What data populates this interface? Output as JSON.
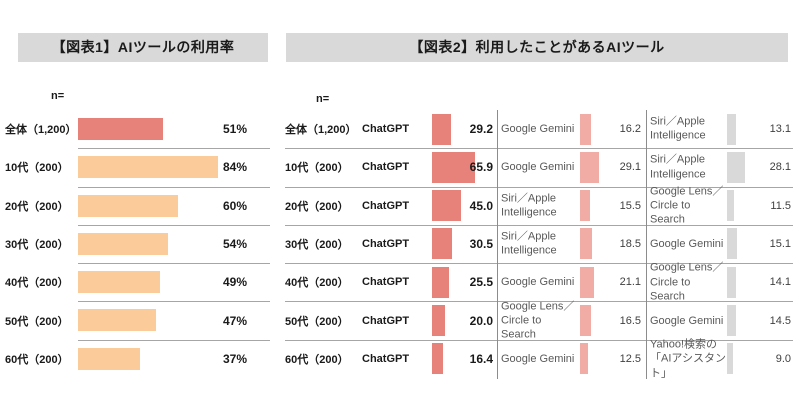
{
  "colors": {
    "header_bg": "#d9d9d9",
    "separator": "#a6a6a6",
    "column_divider": "#8c8c8c",
    "bar_salmon": "#e6827a",
    "bar_orange": "#fbcc99",
    "bar_pink": "#f2aca6",
    "bar_gray": "#d9d9d9",
    "text": "#1a1a1a",
    "muted_text": "#595959"
  },
  "chart_data": [
    {
      "type": "bar",
      "orientation": "horizontal",
      "title": "【図表1】AIツールの利用率",
      "n_label": "n=",
      "unit": "%",
      "xlim": [
        0,
        100
      ],
      "grid": false,
      "categories": [
        "全体（1,200）",
        "10代（200）",
        "20代（200）",
        "30代（200）",
        "40代（200）",
        "50代（200）",
        "60代（200）"
      ],
      "values": [
        51,
        84,
        60,
        54,
        49,
        47,
        37
      ],
      "value_labels": [
        "51%",
        "84%",
        "60%",
        "54%",
        "49%",
        "47%",
        "37%"
      ],
      "bar_colors": [
        "#e6827a",
        "#fbcc99",
        "#fbcc99",
        "#fbcc99",
        "#fbcc99",
        "#fbcc99",
        "#fbcc99"
      ]
    },
    {
      "type": "bar",
      "orientation": "horizontal",
      "title": "【図表2】利用したことがあるAIツール",
      "n_label": "n=",
      "unit": "%",
      "grid": false,
      "rank_colors": [
        "#e6827a",
        "#f2aca6",
        "#d9d9d9"
      ],
      "categories": [
        "全体（1,200）",
        "10代（200）",
        "20代（200）",
        "30代（200）",
        "40代（200）",
        "50代（200）",
        "60代（200）"
      ],
      "rows": [
        {
          "category": "全体（1,200）",
          "tools": [
            {
              "name": "ChatGPT",
              "value": "29.2"
            },
            {
              "name": "Google Gemini",
              "value": "16.2"
            },
            {
              "name": "Siri／Apple Intelligence",
              "value": "13.1"
            }
          ]
        },
        {
          "category": "10代（200）",
          "tools": [
            {
              "name": "ChatGPT",
              "value": "65.9"
            },
            {
              "name": "Google Gemini",
              "value": "29.1"
            },
            {
              "name": "Siri／Apple Intelligence",
              "value": "28.1"
            }
          ]
        },
        {
          "category": "20代（200）",
          "tools": [
            {
              "name": "ChatGPT",
              "value": "45.0"
            },
            {
              "name": "Siri／Apple Intelligence",
              "value": "15.5"
            },
            {
              "name": "Google Lens／Circle to Search",
              "value": "11.5"
            }
          ]
        },
        {
          "category": "30代（200）",
          "tools": [
            {
              "name": "ChatGPT",
              "value": "30.5"
            },
            {
              "name": "Siri／Apple Intelligence",
              "value": "18.5"
            },
            {
              "name": "Google Gemini",
              "value": "15.1"
            }
          ]
        },
        {
          "category": "40代（200）",
          "tools": [
            {
              "name": "ChatGPT",
              "value": "25.5"
            },
            {
              "name": "Google Gemini",
              "value": "21.1"
            },
            {
              "name": "Google Lens／Circle to Search",
              "value": "14.1"
            }
          ]
        },
        {
          "category": "50代（200）",
          "tools": [
            {
              "name": "ChatGPT",
              "value": "20.0"
            },
            {
              "name": "Google Lens／Circle to Search",
              "value": "16.5"
            },
            {
              "name": "Google Gemini",
              "value": "14.5"
            }
          ]
        },
        {
          "category": "60代（200）",
          "tools": [
            {
              "name": "ChatGPT",
              "value": "16.4"
            },
            {
              "name": "Google Gemini",
              "value": "12.5"
            },
            {
              "name": "Yahoo!検索の「AIアシスタント」",
              "value": "9.0"
            }
          ]
        }
      ]
    }
  ]
}
